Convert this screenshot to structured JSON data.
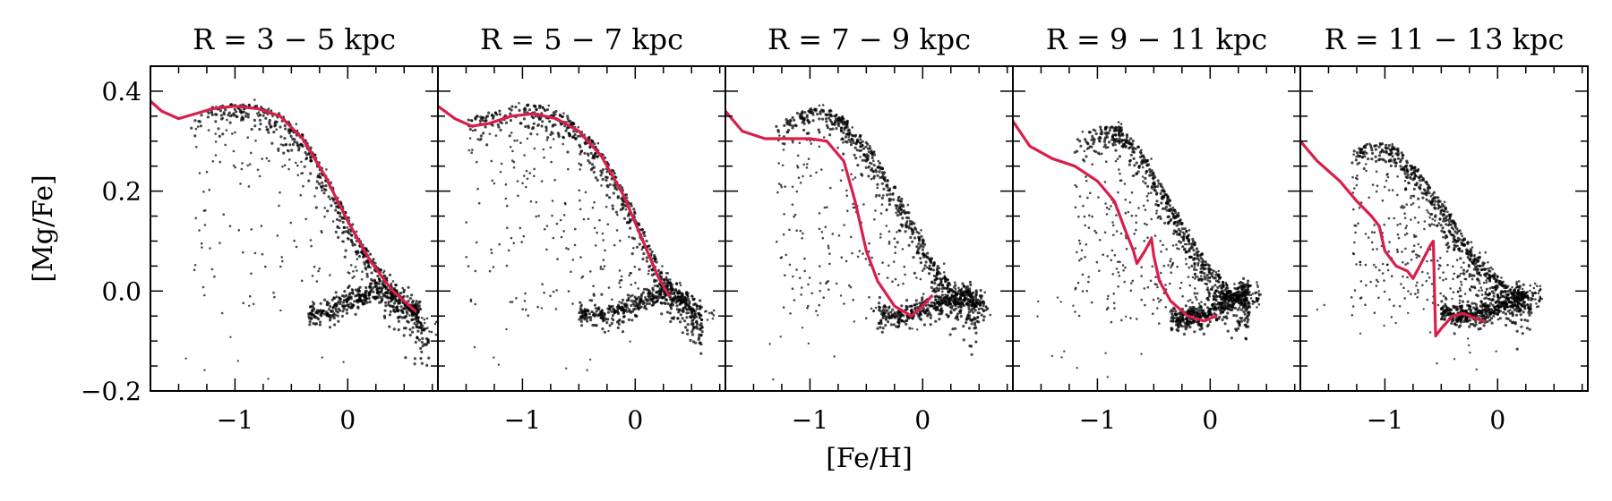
{
  "chart_data": {
    "type": "scatter",
    "xlabel": "[Fe/H]",
    "ylabel": "[Mg/Fe]",
    "xlim": [
      -1.75,
      0.8
    ],
    "ylim": [
      -0.2,
      0.45
    ],
    "xticks_major": [
      -1,
      0
    ],
    "yticks_major": [
      -0.2,
      0.0,
      0.2,
      0.4
    ],
    "ytick_labels": [
      "−0.2",
      "0.0",
      "0.2",
      "0.4"
    ],
    "xtick_labels": [
      "−1",
      "0"
    ],
    "colors": {
      "track": "#d81e4a",
      "stars": "#000000"
    },
    "panels": [
      {
        "title": "R = 3 − 5 kpc",
        "track": [
          [
            -1.75,
            0.38
          ],
          [
            -1.65,
            0.36
          ],
          [
            -1.5,
            0.345
          ],
          [
            -1.35,
            0.355
          ],
          [
            -1.2,
            0.365
          ],
          [
            -1.0,
            0.37
          ],
          [
            -0.8,
            0.365
          ],
          [
            -0.6,
            0.35
          ],
          [
            -0.4,
            0.305
          ],
          [
            -0.2,
            0.23
          ],
          [
            0.0,
            0.14
          ],
          [
            0.2,
            0.06
          ],
          [
            0.4,
            0.0
          ],
          [
            0.6,
            -0.04
          ]
        ],
        "ridge": [
          [
            -1.4,
            0.345
          ],
          [
            -1.2,
            0.368
          ],
          [
            -1.0,
            0.375
          ],
          [
            -0.8,
            0.372
          ],
          [
            -0.6,
            0.355
          ],
          [
            -0.4,
            0.315
          ],
          [
            -0.2,
            0.24
          ],
          [
            0.0,
            0.15
          ],
          [
            0.2,
            0.075
          ],
          [
            0.4,
            0.01
          ],
          [
            0.55,
            -0.03
          ],
          [
            0.72,
            -0.08
          ]
        ],
        "low_seq": [
          [
            -0.35,
            -0.05
          ],
          [
            -0.2,
            -0.045
          ],
          [
            0.0,
            -0.025
          ],
          [
            0.2,
            -0.005
          ],
          [
            0.35,
            0.0
          ],
          [
            0.5,
            -0.02
          ],
          [
            0.65,
            -0.05
          ]
        ],
        "halo_width": 0.9
      },
      {
        "title": "R = 5 − 7 kpc",
        "track": [
          [
            -1.75,
            0.37
          ],
          [
            -1.6,
            0.345
          ],
          [
            -1.45,
            0.33
          ],
          [
            -1.3,
            0.335
          ],
          [
            -1.1,
            0.35
          ],
          [
            -0.9,
            0.355
          ],
          [
            -0.7,
            0.345
          ],
          [
            -0.5,
            0.32
          ],
          [
            -0.3,
            0.27
          ],
          [
            -0.1,
            0.19
          ],
          [
            0.05,
            0.11
          ],
          [
            0.2,
            0.03
          ],
          [
            0.3,
            -0.01
          ]
        ],
        "ridge": [
          [
            -1.5,
            0.345
          ],
          [
            -1.2,
            0.365
          ],
          [
            -1.0,
            0.375
          ],
          [
            -0.8,
            0.37
          ],
          [
            -0.6,
            0.35
          ],
          [
            -0.4,
            0.31
          ],
          [
            -0.2,
            0.245
          ],
          [
            0.0,
            0.16
          ],
          [
            0.15,
            0.08
          ],
          [
            0.3,
            0.02
          ],
          [
            0.45,
            -0.02
          ],
          [
            0.6,
            -0.05
          ]
        ],
        "low_seq": [
          [
            -0.5,
            -0.045
          ],
          [
            -0.3,
            -0.05
          ],
          [
            -0.1,
            -0.04
          ],
          [
            0.1,
            -0.02
          ],
          [
            0.3,
            0.0
          ],
          [
            0.45,
            -0.02
          ],
          [
            0.6,
            -0.045
          ]
        ],
        "halo_width": 1.0
      },
      {
        "title": "R = 7 − 9 kpc",
        "track": [
          [
            -1.75,
            0.36
          ],
          [
            -1.6,
            0.32
          ],
          [
            -1.4,
            0.305
          ],
          [
            -1.2,
            0.305
          ],
          [
            -1.0,
            0.305
          ],
          [
            -0.85,
            0.3
          ],
          [
            -0.7,
            0.26
          ],
          [
            -0.6,
            0.18
          ],
          [
            -0.5,
            0.08
          ],
          [
            -0.4,
            0.02
          ],
          [
            -0.25,
            -0.03
          ],
          [
            -0.1,
            -0.05
          ],
          [
            0.0,
            -0.03
          ],
          [
            0.08,
            -0.01
          ]
        ],
        "ridge": [
          [
            -1.3,
            0.33
          ],
          [
            -1.1,
            0.36
          ],
          [
            -0.9,
            0.37
          ],
          [
            -0.7,
            0.35
          ],
          [
            -0.5,
            0.3
          ],
          [
            -0.3,
            0.23
          ],
          [
            -0.1,
            0.15
          ],
          [
            0.1,
            0.06
          ],
          [
            0.3,
            0.0
          ],
          [
            0.5,
            -0.03
          ]
        ],
        "low_seq": [
          [
            -0.4,
            -0.045
          ],
          [
            -0.2,
            -0.05
          ],
          [
            0.0,
            -0.04
          ],
          [
            0.2,
            -0.02
          ],
          [
            0.4,
            -0.01
          ],
          [
            0.55,
            -0.03
          ]
        ],
        "halo_width": 1.2
      },
      {
        "title": "R = 9 − 11 kpc",
        "track": [
          [
            -1.75,
            0.34
          ],
          [
            -1.6,
            0.29
          ],
          [
            -1.4,
            0.265
          ],
          [
            -1.2,
            0.25
          ],
          [
            -1.0,
            0.22
          ],
          [
            -0.85,
            0.18
          ],
          [
            -0.75,
            0.12
          ],
          [
            -0.68,
            0.08
          ],
          [
            -0.65,
            0.055
          ],
          [
            -0.58,
            0.08
          ],
          [
            -0.52,
            0.105
          ],
          [
            -0.5,
            0.07
          ],
          [
            -0.45,
            0.02
          ],
          [
            -0.35,
            -0.02
          ],
          [
            -0.2,
            -0.05
          ],
          [
            -0.05,
            -0.06
          ],
          [
            0.05,
            -0.05
          ]
        ],
        "ridge": [
          [
            -1.2,
            0.3
          ],
          [
            -1.0,
            0.33
          ],
          [
            -0.8,
            0.33
          ],
          [
            -0.6,
            0.28
          ],
          [
            -0.4,
            0.2
          ],
          [
            -0.2,
            0.12
          ],
          [
            0.0,
            0.05
          ],
          [
            0.2,
            0.0
          ],
          [
            0.35,
            -0.02
          ]
        ],
        "low_seq": [
          [
            -0.35,
            -0.055
          ],
          [
            -0.2,
            -0.055
          ],
          [
            -0.05,
            -0.05
          ],
          [
            0.1,
            -0.03
          ],
          [
            0.25,
            -0.01
          ],
          [
            0.35,
            0.0
          ]
        ],
        "halo_width": 1.5
      },
      {
        "title": "R = 11 − 13 kpc",
        "track": [
          [
            -1.75,
            0.3
          ],
          [
            -1.6,
            0.26
          ],
          [
            -1.4,
            0.22
          ],
          [
            -1.25,
            0.18
          ],
          [
            -1.12,
            0.15
          ],
          [
            -1.05,
            0.13
          ],
          [
            -1.0,
            0.08
          ],
          [
            -0.9,
            0.05
          ],
          [
            -0.8,
            0.04
          ],
          [
            -0.75,
            0.025
          ],
          [
            -0.68,
            0.055
          ],
          [
            -0.6,
            0.09
          ],
          [
            -0.57,
            0.1
          ],
          [
            -0.56,
            0.0
          ],
          [
            -0.55,
            -0.09
          ],
          [
            -0.5,
            -0.075
          ],
          [
            -0.4,
            -0.05
          ],
          [
            -0.3,
            -0.045
          ],
          [
            -0.2,
            -0.055
          ],
          [
            -0.12,
            -0.06
          ]
        ],
        "ridge": [
          [
            -1.3,
            0.28
          ],
          [
            -1.1,
            0.3
          ],
          [
            -0.9,
            0.29
          ],
          [
            -0.7,
            0.24
          ],
          [
            -0.5,
            0.18
          ],
          [
            -0.3,
            0.11
          ],
          [
            -0.1,
            0.05
          ],
          [
            0.1,
            0.01
          ],
          [
            0.3,
            -0.01
          ]
        ],
        "low_seq": [
          [
            -0.5,
            -0.04
          ],
          [
            -0.35,
            -0.05
          ],
          [
            -0.2,
            -0.05
          ],
          [
            -0.05,
            -0.04
          ],
          [
            0.1,
            -0.025
          ],
          [
            0.25,
            -0.005
          ]
        ],
        "halo_width": 1.7
      }
    ]
  }
}
